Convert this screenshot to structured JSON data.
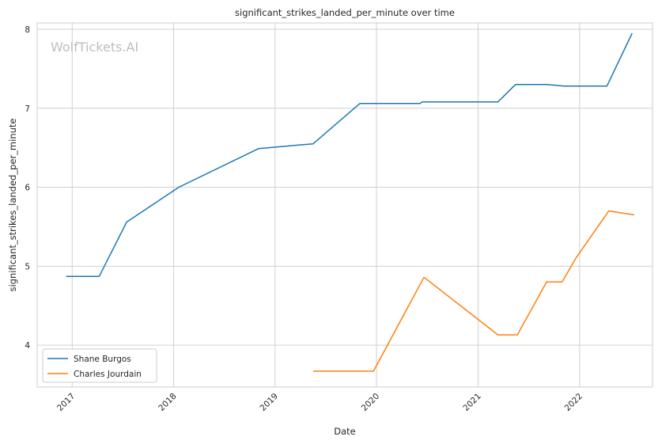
{
  "chart_data": {
    "type": "line",
    "title": "significant_strikes_landed_per_minute over time",
    "xlabel": "Date",
    "ylabel": "significant_strikes_landed_per_minute",
    "watermark": "WolfTickets.AI",
    "xlim": [
      "2016-08-28",
      "2022-09-20"
    ],
    "ylim": [
      3.47,
      8.08
    ],
    "x_ticks": [
      "2017-01-01",
      "2018-01-01",
      "2019-01-01",
      "2020-01-01",
      "2021-01-01",
      "2022-01-01"
    ],
    "x_tick_labels": [
      "2017",
      "2018",
      "2019",
      "2020",
      "2021",
      "2022"
    ],
    "y_ticks": [
      4,
      5,
      6,
      7,
      8
    ],
    "y_tick_labels": [
      "4",
      "5",
      "6",
      "7",
      "8"
    ],
    "grid": true,
    "legend_position": "lower-left",
    "series": [
      {
        "name": "Shane Burgos",
        "color": "#1f77b4",
        "points": [
          [
            "2016-12-10",
            4.87
          ],
          [
            "2017-04-08",
            4.87
          ],
          [
            "2017-07-16",
            5.56
          ],
          [
            "2018-01-20",
            6.0
          ],
          [
            "2018-11-03",
            6.49
          ],
          [
            "2019-05-18",
            6.55
          ],
          [
            "2019-11-02",
            7.06
          ],
          [
            "2020-06-06",
            7.06
          ],
          [
            "2020-06-13",
            7.08
          ],
          [
            "2021-03-13",
            7.08
          ],
          [
            "2021-05-15",
            7.3
          ],
          [
            "2021-09-04",
            7.3
          ],
          [
            "2021-11-06",
            7.28
          ],
          [
            "2022-04-09",
            7.28
          ],
          [
            "2022-07-09",
            7.95
          ]
        ]
      },
      {
        "name": "Charles Jourdain",
        "color": "#ff7f0e",
        "points": [
          [
            "2019-05-18",
            3.67
          ],
          [
            "2019-12-21",
            3.67
          ],
          [
            "2020-06-20",
            4.86
          ],
          [
            "2021-03-13",
            4.13
          ],
          [
            "2021-05-22",
            4.13
          ],
          [
            "2021-09-04",
            4.8
          ],
          [
            "2021-10-30",
            4.8
          ],
          [
            "2021-12-18",
            5.1
          ],
          [
            "2022-04-16",
            5.7
          ],
          [
            "2022-07-16",
            5.65
          ]
        ]
      }
    ]
  }
}
